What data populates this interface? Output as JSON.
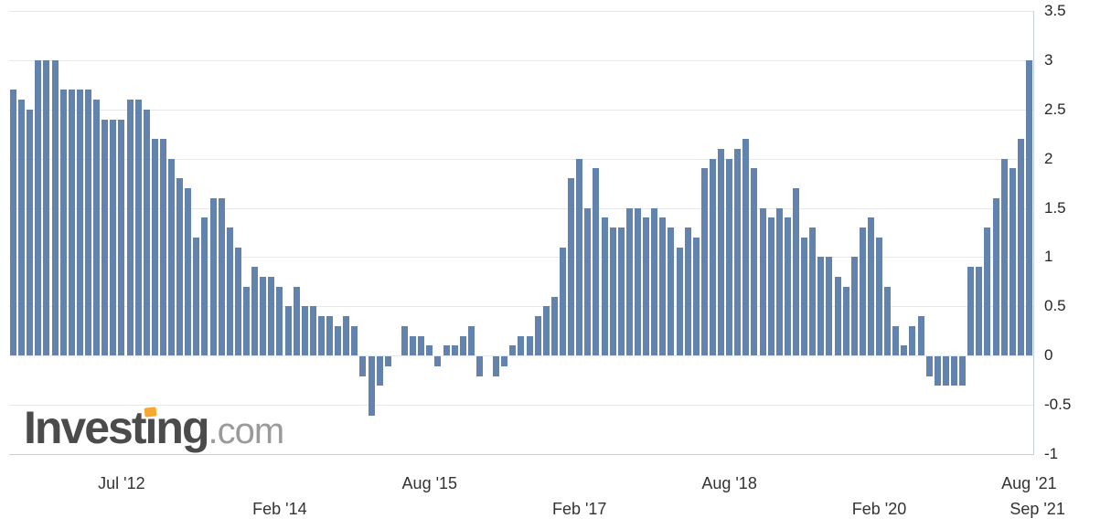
{
  "chart_data": {
    "type": "bar",
    "title": "",
    "xlabel": "",
    "ylabel": "",
    "ylim": [
      -1,
      3.5
    ],
    "grid": true,
    "legend": false,
    "y_ticks": [
      "3.5",
      "3",
      "2.5",
      "2",
      "1.5",
      "1",
      "0.5",
      "0",
      "-0.5",
      "-1"
    ],
    "x_ticks": [
      {
        "label": "Jul '12",
        "index": 13,
        "row": 1
      },
      {
        "label": "Feb '14",
        "index": 32,
        "row": 2
      },
      {
        "label": "Aug '15",
        "index": 50,
        "row": 1
      },
      {
        "label": "Feb '17",
        "index": 68,
        "row": 2
      },
      {
        "label": "Aug '18",
        "index": 86,
        "row": 1
      },
      {
        "label": "Feb '20",
        "index": 104,
        "row": 2
      },
      {
        "label": "Aug '21",
        "index": 122,
        "row": 1
      },
      {
        "label": "Sep '21",
        "index": 123,
        "row": 2
      }
    ],
    "x": [
      "Jun '11",
      "Jul '11",
      "Aug '11",
      "Sep '11",
      "Oct '11",
      "Nov '11",
      "Dec '11",
      "Jan '12",
      "Feb '12",
      "Mar '12",
      "Apr '12",
      "May '12",
      "Jun '12",
      "Jul '12",
      "Aug '12",
      "Sep '12",
      "Oct '12",
      "Nov '12",
      "Dec '12",
      "Jan '13",
      "Feb '13",
      "Mar '13",
      "Apr '13",
      "May '13",
      "Jun '13",
      "Jul '13",
      "Aug '13",
      "Sep '13",
      "Oct '13",
      "Nov '13",
      "Dec '13",
      "Jan '14",
      "Feb '14",
      "Mar '14",
      "Apr '14",
      "May '14",
      "Jun '14",
      "Jul '14",
      "Aug '14",
      "Sep '14",
      "Oct '14",
      "Nov '14",
      "Dec '14",
      "Jan '15",
      "Feb '15",
      "Mar '15",
      "Apr '15",
      "May '15",
      "Jun '15",
      "Jul '15",
      "Aug '15",
      "Sep '15",
      "Oct '15",
      "Nov '15",
      "Dec '15",
      "Jan '16",
      "Feb '16",
      "Mar '16",
      "Apr '16",
      "May '16",
      "Jun '16",
      "Jul '16",
      "Aug '16",
      "Sep '16",
      "Oct '16",
      "Nov '16",
      "Dec '16",
      "Jan '17",
      "Feb '17",
      "Mar '17",
      "Apr '17",
      "May '17",
      "Jun '17",
      "Jul '17",
      "Aug '17",
      "Sep '17",
      "Oct '17",
      "Nov '17",
      "Dec '17",
      "Jan '18",
      "Feb '18",
      "Mar '18",
      "Apr '18",
      "May '18",
      "Jun '18",
      "Jul '18",
      "Aug '18",
      "Sep '18",
      "Oct '18",
      "Nov '18",
      "Dec '18",
      "Jan '19",
      "Feb '19",
      "Mar '19",
      "Apr '19",
      "May '19",
      "Jun '19",
      "Jul '19",
      "Aug '19",
      "Sep '19",
      "Oct '19",
      "Nov '19",
      "Dec '19",
      "Jan '20",
      "Feb '20",
      "Mar '20",
      "Apr '20",
      "May '20",
      "Jun '20",
      "Jul '20",
      "Aug '20",
      "Sep '20",
      "Oct '20",
      "Nov '20",
      "Dec '20",
      "Jan '21",
      "Feb '21",
      "Mar '21",
      "Apr '21",
      "May '21",
      "Jun '21",
      "Jul '21",
      "Aug '21"
    ],
    "values": [
      2.7,
      2.6,
      2.5,
      3.0,
      3.0,
      3.0,
      2.7,
      2.7,
      2.7,
      2.7,
      2.6,
      2.4,
      2.4,
      2.4,
      2.6,
      2.6,
      2.5,
      2.2,
      2.2,
      2.0,
      1.8,
      1.7,
      1.2,
      1.4,
      1.6,
      1.6,
      1.3,
      1.1,
      0.7,
      0.9,
      0.8,
      0.8,
      0.7,
      0.5,
      0.7,
      0.5,
      0.5,
      0.4,
      0.4,
      0.3,
      0.4,
      0.3,
      -0.2,
      -0.6,
      -0.3,
      -0.1,
      0.0,
      0.3,
      0.2,
      0.2,
      0.1,
      -0.1,
      0.1,
      0.1,
      0.2,
      0.3,
      -0.2,
      0.0,
      -0.2,
      -0.1,
      0.1,
      0.2,
      0.2,
      0.4,
      0.5,
      0.6,
      1.1,
      1.8,
      2.0,
      1.5,
      1.9,
      1.4,
      1.3,
      1.3,
      1.5,
      1.5,
      1.4,
      1.5,
      1.4,
      1.3,
      1.1,
      1.3,
      1.2,
      1.9,
      2.0,
      2.1,
      2.0,
      2.1,
      2.2,
      1.9,
      1.5,
      1.4,
      1.5,
      1.4,
      1.7,
      1.2,
      1.3,
      1.0,
      1.0,
      0.8,
      0.7,
      1.0,
      1.3,
      1.4,
      1.2,
      0.7,
      0.3,
      0.1,
      0.3,
      0.4,
      -0.2,
      -0.3,
      -0.3,
      -0.3,
      -0.3,
      0.9,
      0.9,
      1.3,
      1.6,
      2.0,
      1.9,
      2.2,
      3.0
    ]
  },
  "logo": {
    "part1": "Invest",
    "part2": "ı",
    "part3": "ng",
    "suffix": ".com",
    "accent_color": "#f7a832"
  },
  "colors": {
    "bar": "#6183ae",
    "grid": "#e8e8e8",
    "axis": "#c3ced8",
    "y_label": "#262626",
    "x_label": "#333333",
    "logo_main": "#4b4b4b",
    "logo_suffix": "#9a9a9a",
    "background": "#ffffff"
  }
}
